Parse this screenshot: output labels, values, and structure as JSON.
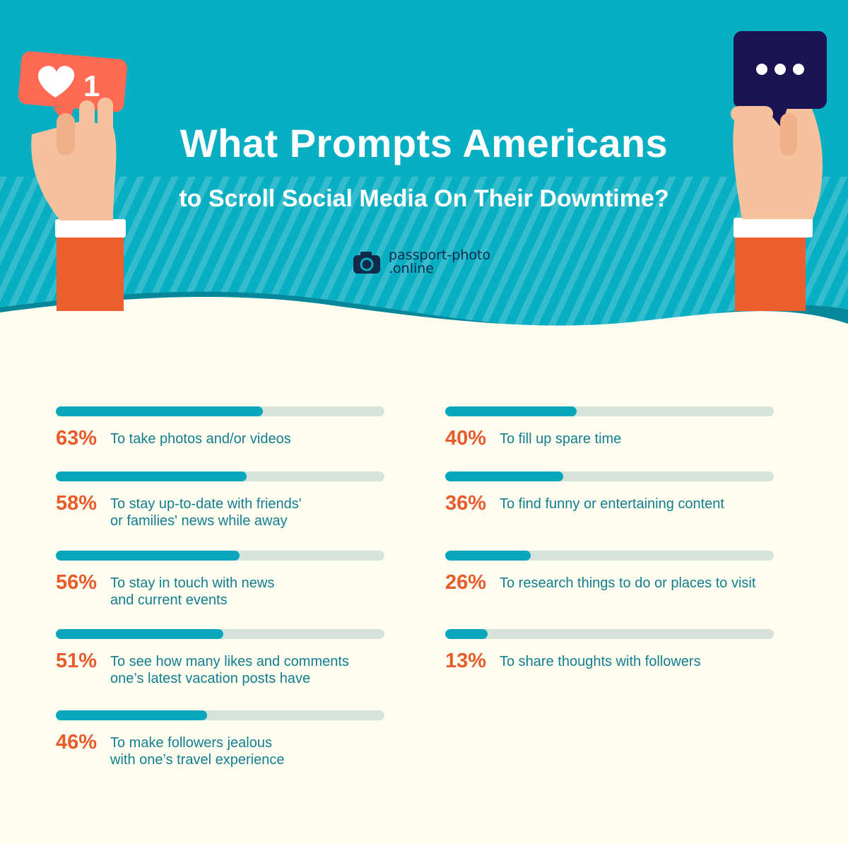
{
  "title": "What Prompts Americans",
  "subtitle": "to Scroll Social Media On Their Downtime?",
  "brand": {
    "line1": "passport-photo",
    "line2": ".online",
    "icon": "camera-icon"
  },
  "like_badge": {
    "count": "1",
    "icon": "heart-icon"
  },
  "chat_badge": {
    "icon": "ellipsis-icon"
  },
  "colors": {
    "header": "#08aec2",
    "bar_fill": "#0aa6bb",
    "bar_track": "#d5e3db",
    "percent": "#ea5b2b",
    "label": "#147d8f",
    "background": "#fdfdf0"
  },
  "chart_data": {
    "type": "bar",
    "orientation": "horizontal",
    "unit": "%",
    "xlim": [
      0,
      100
    ],
    "categories": [
      "To take photos and/or videos",
      "To stay up-to-date with friends'\nor families' news while away",
      "To stay in touch with news\nand current events",
      "To see how many likes and comments\none’s latest vacation posts have",
      "To make followers jealous\nwith one’s travel experience",
      "To fill up spare time",
      "To find funny or entertaining content",
      "To research things to do or places to visit",
      "To share thoughts with followers"
    ],
    "values": [
      63,
      58,
      56,
      51,
      46,
      40,
      36,
      26,
      13
    ],
    "value_labels": [
      "63%",
      "58%",
      "56%",
      "51%",
      "46%",
      "40%",
      "36%",
      "26%",
      "13%"
    ]
  }
}
